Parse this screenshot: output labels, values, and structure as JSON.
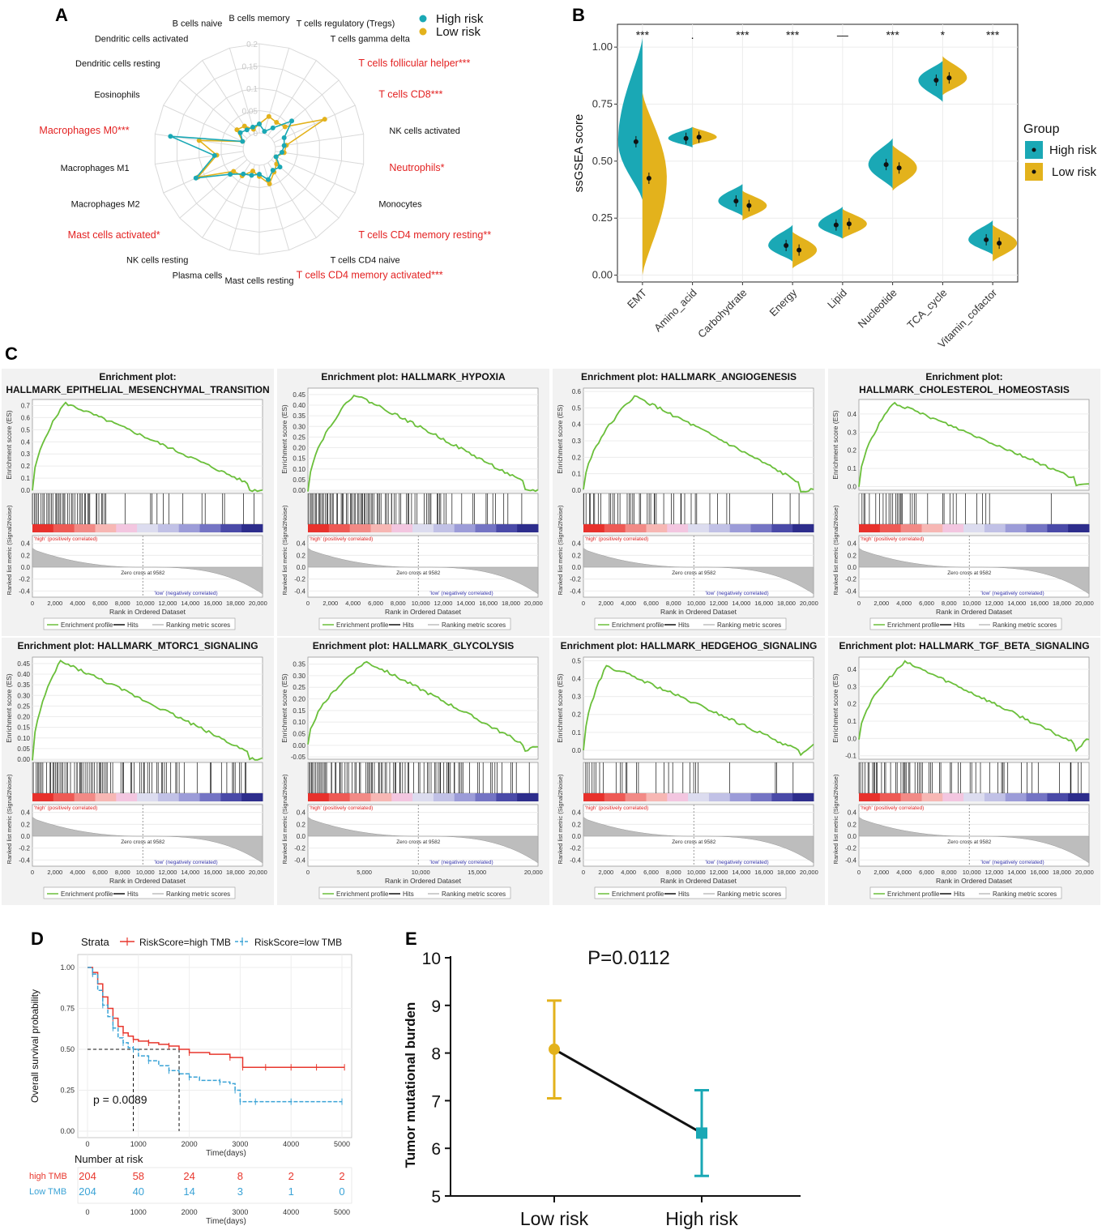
{
  "colors": {
    "high": "#1aa8b5",
    "low": "#e3b21c",
    "significant": "#e32222",
    "es_line": "#6abf3a",
    "km_high": "#e8372d",
    "km_low": "#3aa3d6",
    "e_low": "#e3b21c",
    "e_high": "#1aa8b5"
  },
  "panel_labels": {
    "a": "A",
    "b": "B",
    "c": "C",
    "d": "D",
    "e": "E"
  },
  "chart_data": [
    {
      "id": "A",
      "type": "radar",
      "legend": [
        "High risk",
        "Low risk"
      ],
      "radial_ticks": [
        "0",
        "0.05",
        "0.1",
        "0.15",
        "0.2"
      ],
      "rmax": 0.2,
      "categories": [
        {
          "label": "B cells memory",
          "sig": false
        },
        {
          "label": "T cells regulatory (Tregs)",
          "sig": false
        },
        {
          "label": "T cells gamma delta",
          "sig": false
        },
        {
          "label": "T cells follicular helper***",
          "sig": true
        },
        {
          "label": "T cells CD8***",
          "sig": true
        },
        {
          "label": "NK cells activated",
          "sig": false
        },
        {
          "label": "Neutrophils*",
          "sig": true
        },
        {
          "label": "Monocytes",
          "sig": false
        },
        {
          "label": "T cells CD4 memory resting**",
          "sig": true
        },
        {
          "label": "T cells CD4 naive",
          "sig": false
        },
        {
          "label": "T cells CD4 memory activated***",
          "sig": true
        },
        {
          "label": "Mast cells resting",
          "sig": false
        },
        {
          "label": "Plasma cells",
          "sig": false
        },
        {
          "label": "NK cells resting",
          "sig": false
        },
        {
          "label": "Mast cells activated*",
          "sig": true
        },
        {
          "label": "Macrophages M2",
          "sig": false
        },
        {
          "label": "Macrophages M1",
          "sig": false
        },
        {
          "label": "Macrophages M0***",
          "sig": true
        },
        {
          "label": "Eosinophils",
          "sig": false
        },
        {
          "label": "Dendritic cells resting",
          "sig": false
        },
        {
          "label": "Dendritic cells activated",
          "sig": false
        },
        {
          "label": "B cells naive",
          "sig": false
        }
      ],
      "series": [
        {
          "name": "High risk",
          "values": [
            0.02,
            0.005,
            0.02,
            0.06,
            0.025,
            0.02,
            0.015,
            0.005,
            0.025,
            0.02,
            0.035,
            0.02,
            0.025,
            0.03,
            0.05,
            0.12,
            0.065,
            0.165,
            0.005,
            0.02,
            0.015,
            0.015
          ]
        },
        {
          "name": "Low risk",
          "values": [
            0.02,
            0.04,
            0.035,
            0.04,
            0.125,
            0.025,
            0.02,
            0.005,
            0.015,
            0.025,
            0.045,
            0.025,
            0.015,
            0.035,
            0.04,
            0.115,
            0.06,
            0.1,
            0.005,
            0.03,
            0.025,
            0.01
          ]
        }
      ]
    },
    {
      "id": "B",
      "type": "split-violin",
      "ylabel": "ssGSEA score",
      "yticks": [
        "0.00",
        "0.25",
        "0.50",
        "0.75",
        "1.00"
      ],
      "ylim": [
        -0.03,
        1.1
      ],
      "legend_title": "Group",
      "legend": [
        "High risk",
        "Low risk"
      ],
      "categories": [
        "EMT",
        "Amino_acid",
        "Carbohydrate",
        "Energy",
        "Lipid",
        "Nucleotide",
        "TCA_cycle",
        "Vitamin_cofactor"
      ],
      "significance": [
        "***",
        ".",
        "***",
        "***",
        "—",
        "***",
        "*",
        "***"
      ],
      "series": [
        {
          "name": "High risk",
          "means": [
            0.585,
            0.6,
            0.325,
            0.13,
            0.22,
            0.485,
            0.855,
            0.155
          ],
          "min": [
            0.33,
            0.56,
            0.26,
            0.06,
            0.16,
            0.38,
            0.76,
            0.09
          ],
          "max": [
            1.04,
            0.65,
            0.4,
            0.22,
            0.3,
            0.6,
            0.94,
            0.24
          ]
        },
        {
          "name": "Low risk",
          "means": [
            0.425,
            0.605,
            0.305,
            0.11,
            0.225,
            0.47,
            0.865,
            0.14
          ],
          "min": [
            0.0,
            0.57,
            0.24,
            0.03,
            0.16,
            0.37,
            0.79,
            0.06
          ],
          "max": [
            0.8,
            0.65,
            0.37,
            0.19,
            0.29,
            0.57,
            0.96,
            0.22
          ]
        }
      ]
    },
    {
      "id": "C",
      "type": "line",
      "plots": [
        {
          "title": [
            "Enrichment plot:",
            "HALLMARK_EPITHELIAL_MESENCHYMAL_TRANSITION"
          ],
          "es_ticks": [
            "0.0",
            "0.1",
            "0.2",
            "0.3",
            "0.4",
            "0.5",
            "0.6",
            "0.7"
          ],
          "es_range": [
            0,
            0.75
          ],
          "peak_x": 0.14,
          "peak": 0.72,
          "end": 0.0,
          "min": null,
          "rank_ticks": [
            "0",
            "2,000",
            "4,000",
            "6,000",
            "8,000",
            "10,000",
            "12,000",
            "14,000",
            "16,000",
            "18,000",
            "20,000"
          ],
          "hit_density": [
            0.9,
            0.25,
            0.05
          ]
        },
        {
          "title": [
            "Enrichment plot: HALLMARK_HYPOXIA"
          ],
          "es_ticks": [
            "0.00",
            "0.05",
            "0.10",
            "0.15",
            "0.20",
            "0.25",
            "0.30",
            "0.35",
            "0.40",
            "0.45"
          ],
          "es_range": [
            0,
            0.48
          ],
          "peak_x": 0.2,
          "peak": 0.45,
          "end": 0.0,
          "min": null,
          "rank_ticks": [
            "0",
            "2,000",
            "4,000",
            "6,000",
            "8,000",
            "10,000",
            "12,000",
            "14,000",
            "16,000",
            "18,000",
            "20,000"
          ],
          "hit_density": [
            0.95,
            0.55,
            0.25
          ]
        },
        {
          "title": [
            "Enrichment plot: HALLMARK_ANGIOGENESIS"
          ],
          "es_ticks": [
            "0.0",
            "0.1",
            "0.2",
            "0.3",
            "0.4",
            "0.5",
            "0.6"
          ],
          "es_range": [
            0,
            0.62
          ],
          "peak_x": 0.22,
          "peak": 0.57,
          "end": 0.0,
          "min": null,
          "rank_ticks": [
            "0",
            "2,000",
            "4,000",
            "6,000",
            "8,000",
            "10,000",
            "12,000",
            "14,000",
            "16,000",
            "18,000",
            "20,000"
          ],
          "hit_density": [
            0.45,
            0.2,
            0.1
          ]
        },
        {
          "title": [
            "Enrichment plot:",
            "HALLMARK_CHOLESTEROL_HOMEOSTASIS"
          ],
          "es_ticks": [
            "0.0",
            "0.1",
            "0.2",
            "0.3",
            "0.4"
          ],
          "es_range": [
            -0.02,
            0.48
          ],
          "peak_x": 0.15,
          "peak": 0.46,
          "end": 0.01,
          "min": null,
          "rank_ticks": [
            "0",
            "2,000",
            "4,000",
            "6,000",
            "8,000",
            "10,000",
            "12,000",
            "14,000",
            "16,000",
            "18,000",
            "20,000"
          ],
          "hit_density": [
            0.6,
            0.25,
            0.1
          ]
        },
        {
          "title": [
            "Enrichment plot: HALLMARK_MTORC1_SIGNALING"
          ],
          "es_ticks": [
            "0.00",
            "0.05",
            "0.10",
            "0.15",
            "0.20",
            "0.25",
            "0.30",
            "0.35",
            "0.40",
            "0.45"
          ],
          "es_range": [
            0,
            0.48
          ],
          "peak_x": 0.12,
          "peak": 0.46,
          "end": 0.0,
          "min": null,
          "rank_ticks": [
            "0",
            "2,000",
            "4,000",
            "6,000",
            "8,000",
            "10,000",
            "12,000",
            "14,000",
            "16,000",
            "18,000",
            "20,000"
          ],
          "hit_density": [
            0.95,
            0.6,
            0.35
          ]
        },
        {
          "title": [
            "Enrichment plot: HALLMARK_GLYCOLYSIS"
          ],
          "es_ticks": [
            "-0.05",
            "0.00",
            "0.05",
            "0.10",
            "0.15",
            "0.20",
            "0.25",
            "0.30",
            "0.35"
          ],
          "es_range": [
            -0.06,
            0.38
          ],
          "peak_x": 0.25,
          "peak": 0.36,
          "end": 0.0,
          "min": -0.03,
          "rank_ticks": [
            "0",
            "5,000",
            "10,000",
            "15,000",
            "20,000"
          ],
          "hit_density": [
            0.95,
            0.7,
            0.45
          ]
        },
        {
          "title": [
            "Enrichment plot: HALLMARK_HEDGEHOG_SIGNALING"
          ],
          "es_ticks": [
            "0.0",
            "0.1",
            "0.2",
            "0.3",
            "0.4",
            "0.5"
          ],
          "es_range": [
            -0.05,
            0.52
          ],
          "peak_x": 0.1,
          "peak": 0.47,
          "end": 0.04,
          "min": -0.04,
          "rank_ticks": [
            "0",
            "2,000",
            "4,000",
            "6,000",
            "8,000",
            "10,000",
            "12,000",
            "14,000",
            "16,000",
            "18,000",
            "20,000"
          ],
          "hit_density": [
            0.3,
            0.15,
            0.1
          ]
        },
        {
          "title": [
            "Enrichment plot: HALLMARK_TGF_BETA_SIGNALING"
          ],
          "es_ticks": [
            "-0.1",
            "0.0",
            "0.1",
            "0.2",
            "0.3",
            "0.4"
          ],
          "es_range": [
            -0.12,
            0.47
          ],
          "peak_x": 0.2,
          "peak": 0.44,
          "end": 0.0,
          "min": -0.07,
          "rank_ticks": [
            "0",
            "2,000",
            "4,000",
            "6,000",
            "8,000",
            "10,000",
            "12,000",
            "14,000",
            "16,000",
            "18,000",
            "20,000"
          ],
          "hit_density": [
            0.75,
            0.45,
            0.25
          ]
        }
      ],
      "es_ylabel": "Enrichment score (ES)",
      "rank_ylabel": "Ranked list metric (Signal2Noise)",
      "metric_ticks": [
        "0.4",
        "0.2",
        "0.0",
        "-0.2",
        "-0.4"
      ],
      "xlabel": "Rank in Ordered Dataset",
      "high_label": "'high' (positively correlated)",
      "low_label": "'low' (negatively correlated)",
      "zero_cross": "Zero cross at 9582",
      "zero_cross_frac": 0.48,
      "legend": [
        "Enrichment profile",
        "Hits",
        "Ranking metric scores"
      ]
    },
    {
      "id": "D",
      "type": "km",
      "strata_label": "Strata",
      "legend": [
        "RiskScore=high TMB",
        "RiskScore=low TMB"
      ],
      "ylabel": "Overall survival probability",
      "xlabel": "Time(days)",
      "xticks": [
        0,
        1000,
        2000,
        3000,
        4000,
        5000
      ],
      "yticks": [
        "0.00",
        "0.25",
        "0.50",
        "0.75",
        "1.00"
      ],
      "pvalue": "p = 0.0089",
      "median": {
        "high": 1800,
        "low": 900
      },
      "series": [
        {
          "name": "RiskScore=high TMB",
          "times": [
            0,
            100,
            200,
            300,
            400,
            500,
            600,
            700,
            800,
            900,
            1000,
            1200,
            1400,
            1600,
            1800,
            2000,
            2400,
            2800,
            2950,
            3050,
            3500,
            4000,
            4500,
            5050
          ],
          "surv": [
            1.0,
            0.97,
            0.9,
            0.82,
            0.75,
            0.69,
            0.64,
            0.6,
            0.58,
            0.56,
            0.55,
            0.54,
            0.53,
            0.52,
            0.5,
            0.48,
            0.47,
            0.45,
            0.45,
            0.39,
            0.39,
            0.39,
            0.39,
            0.39
          ]
        },
        {
          "name": "RiskScore=low TMB",
          "times": [
            0,
            100,
            200,
            300,
            400,
            500,
            600,
            700,
            800,
            900,
            1000,
            1200,
            1400,
            1600,
            1800,
            2000,
            2200,
            2600,
            2800,
            2900,
            3000,
            3300,
            4000,
            5000
          ],
          "surv": [
            1.0,
            0.96,
            0.86,
            0.77,
            0.7,
            0.63,
            0.57,
            0.54,
            0.51,
            0.5,
            0.46,
            0.43,
            0.4,
            0.37,
            0.35,
            0.33,
            0.31,
            0.3,
            0.29,
            0.25,
            0.18,
            0.18,
            0.18,
            0.18
          ]
        }
      ],
      "risk_table": {
        "title": "Number at risk",
        "rows": [
          {
            "label": "high TMB",
            "values": [
              "204",
              "58",
              "24",
              "8",
              "2",
              "2"
            ]
          },
          {
            "label": "Low TMB",
            "values": [
              "204",
              "40",
              "14",
              "3",
              "1",
              "0"
            ]
          }
        ],
        "xticks": [
          "0",
          "1000",
          "2000",
          "3000",
          "4000",
          "5000"
        ],
        "xlabel": "Time(days)"
      }
    },
    {
      "id": "E",
      "type": "errorbar",
      "title": "P=0.0112",
      "ylabel": "Tumor mutational burden",
      "yticks": [
        "5",
        "6",
        "7",
        "8",
        "9",
        "10"
      ],
      "ylim": [
        5,
        10
      ],
      "categories": [
        "Low risk",
        "High risk"
      ],
      "means": [
        8.08,
        6.32
      ],
      "lower": [
        7.05,
        5.42
      ],
      "upper": [
        9.1,
        7.22
      ]
    }
  ]
}
